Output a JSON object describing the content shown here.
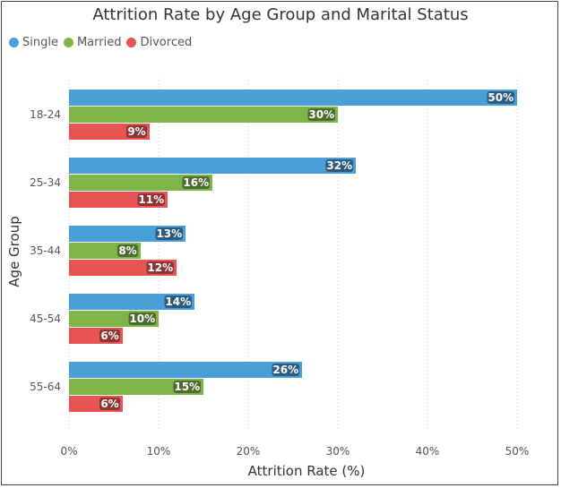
{
  "chart_data": {
    "type": "bar",
    "orientation": "horizontal",
    "title": "Attrition Rate by Age Group and Marital Status",
    "xlabel": "Attrition Rate (%)",
    "ylabel": "Age Group",
    "categories": [
      "18-24",
      "25-34",
      "35-44",
      "45-54",
      "55-64"
    ],
    "series": [
      {
        "name": "Single",
        "values": [
          50,
          32,
          13,
          14,
          26
        ],
        "color": "#4a9fd8",
        "label_color": "#2d5a7d"
      },
      {
        "name": "Married",
        "values": [
          30,
          16,
          8,
          10,
          15
        ],
        "color": "#7db548",
        "label_color": "#4c6b2f"
      },
      {
        "name": "Divorced",
        "values": [
          9,
          11,
          12,
          6,
          6
        ],
        "color": "#e85454",
        "label_color": "#8c3535"
      }
    ],
    "xticks": [
      "0%",
      "10%",
      "20%",
      "30%",
      "40%",
      "50%"
    ],
    "xlim": [
      0,
      50
    ],
    "grid": true,
    "legend_position": "top-left"
  }
}
